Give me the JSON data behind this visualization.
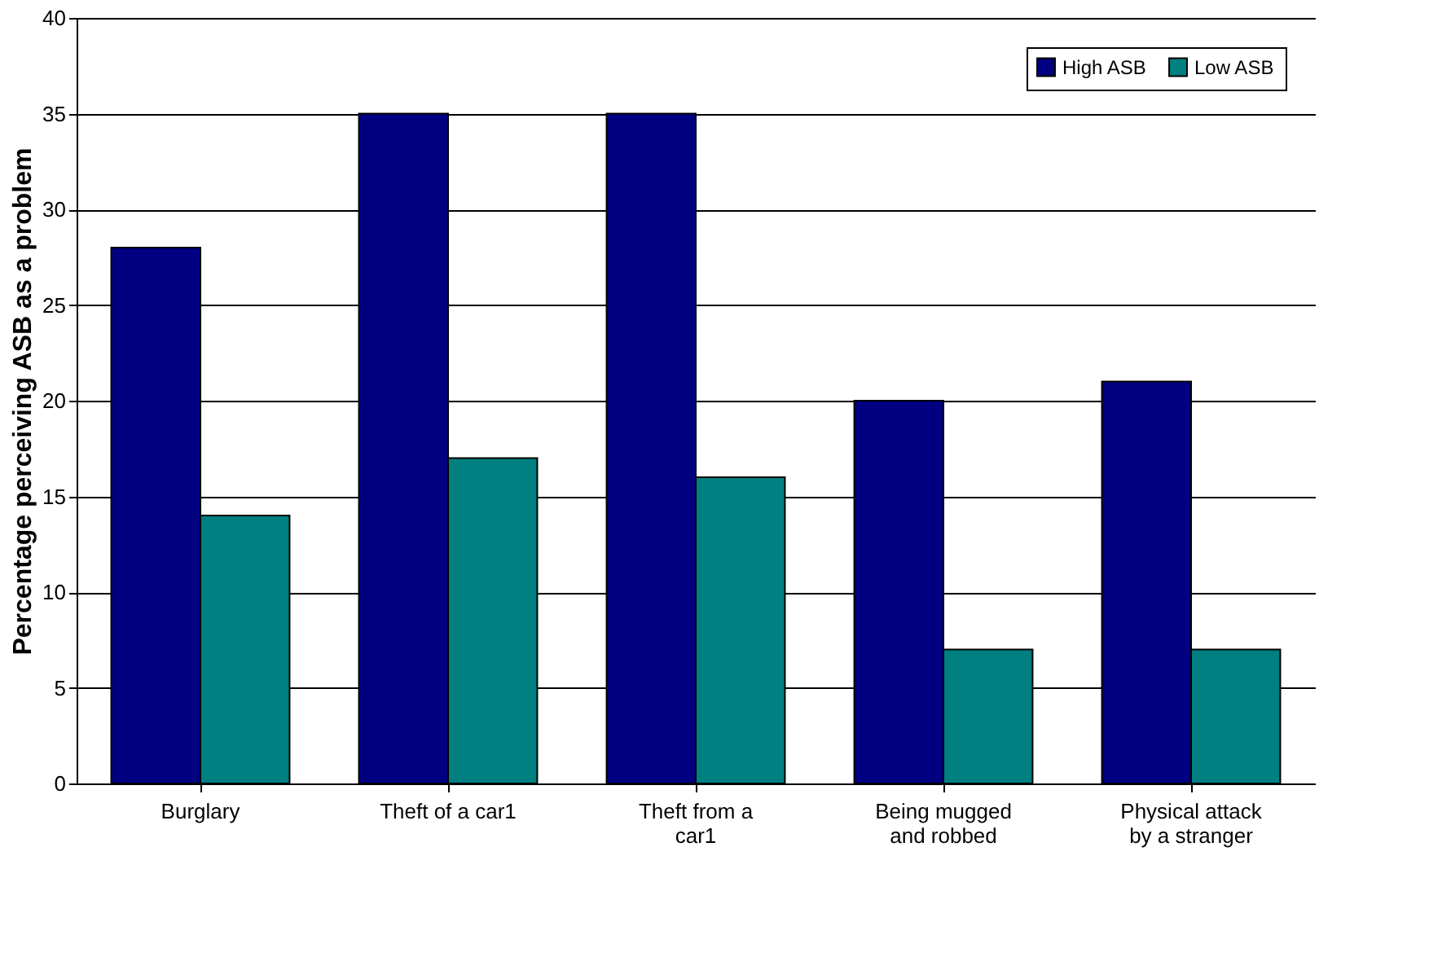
{
  "chart_data": {
    "type": "bar",
    "ylabel": "Percentage perceiving ASB as a problem",
    "categories": [
      "Burglary",
      "Theft of a car1",
      "Theft from a car1",
      "Being mugged and robbed",
      "Physical attack by a stranger"
    ],
    "series": [
      {
        "name": "High ASB",
        "color": "#000080",
        "values": [
          28,
          35,
          35,
          20,
          21
        ]
      },
      {
        "name": "Low ASB",
        "color": "#008080",
        "values": [
          14,
          17,
          16,
          7,
          7
        ]
      }
    ],
    "ylim": [
      0,
      40
    ],
    "yticks": [
      0,
      5,
      10,
      15,
      20,
      25,
      30,
      35,
      40
    ],
    "grid": "y",
    "legend": "top right"
  }
}
